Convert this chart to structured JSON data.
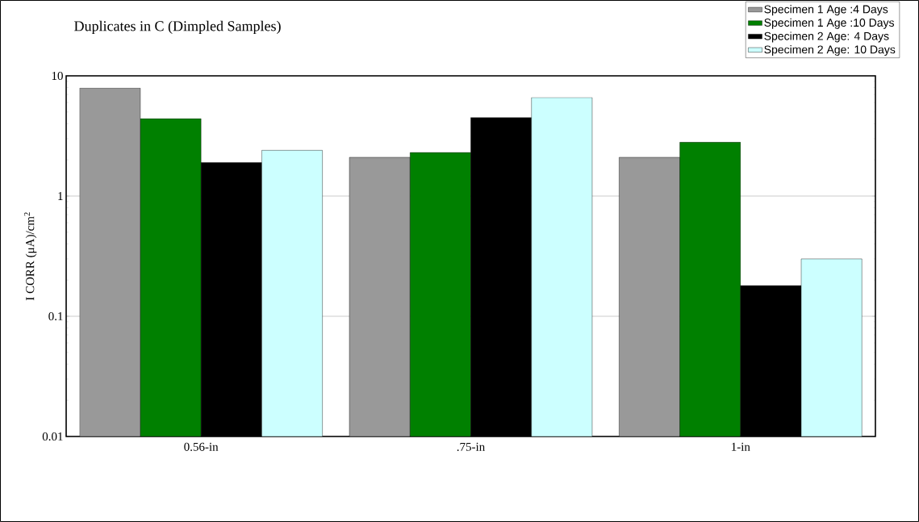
{
  "chart_data": {
    "type": "bar",
    "title": "Duplicates in C (Dimpled Samples)",
    "ylabel": "I CORR (μA)/cm$^{2}$",
    "categories": [
      "0.56-in",
      ".75-in",
      "1-in"
    ],
    "series": [
      {
        "name": "Specimen 1  Age :4 Days",
        "color": "#999999",
        "values": [
          7.9,
          2.1,
          2.1
        ]
      },
      {
        "name": "Specimen 1  Age :10 Days",
        "color": "#008000",
        "values": [
          4.4,
          2.3,
          2.8
        ]
      },
      {
        "name": "Specimen 2 Age: 4 Days",
        "color": "#000000",
        "values": [
          1.9,
          4.5,
          0.18
        ]
      },
      {
        "name": "Specimen 2 Age: 10 Days",
        "color": "#ccffff",
        "values": [
          2.4,
          6.6,
          0.3
        ]
      }
    ],
    "ylim": [
      0.01,
      10
    ],
    "yticks": [
      0.01,
      0.1,
      1,
      10
    ],
    "log": true,
    "grid": "y",
    "legend": "top right"
  }
}
